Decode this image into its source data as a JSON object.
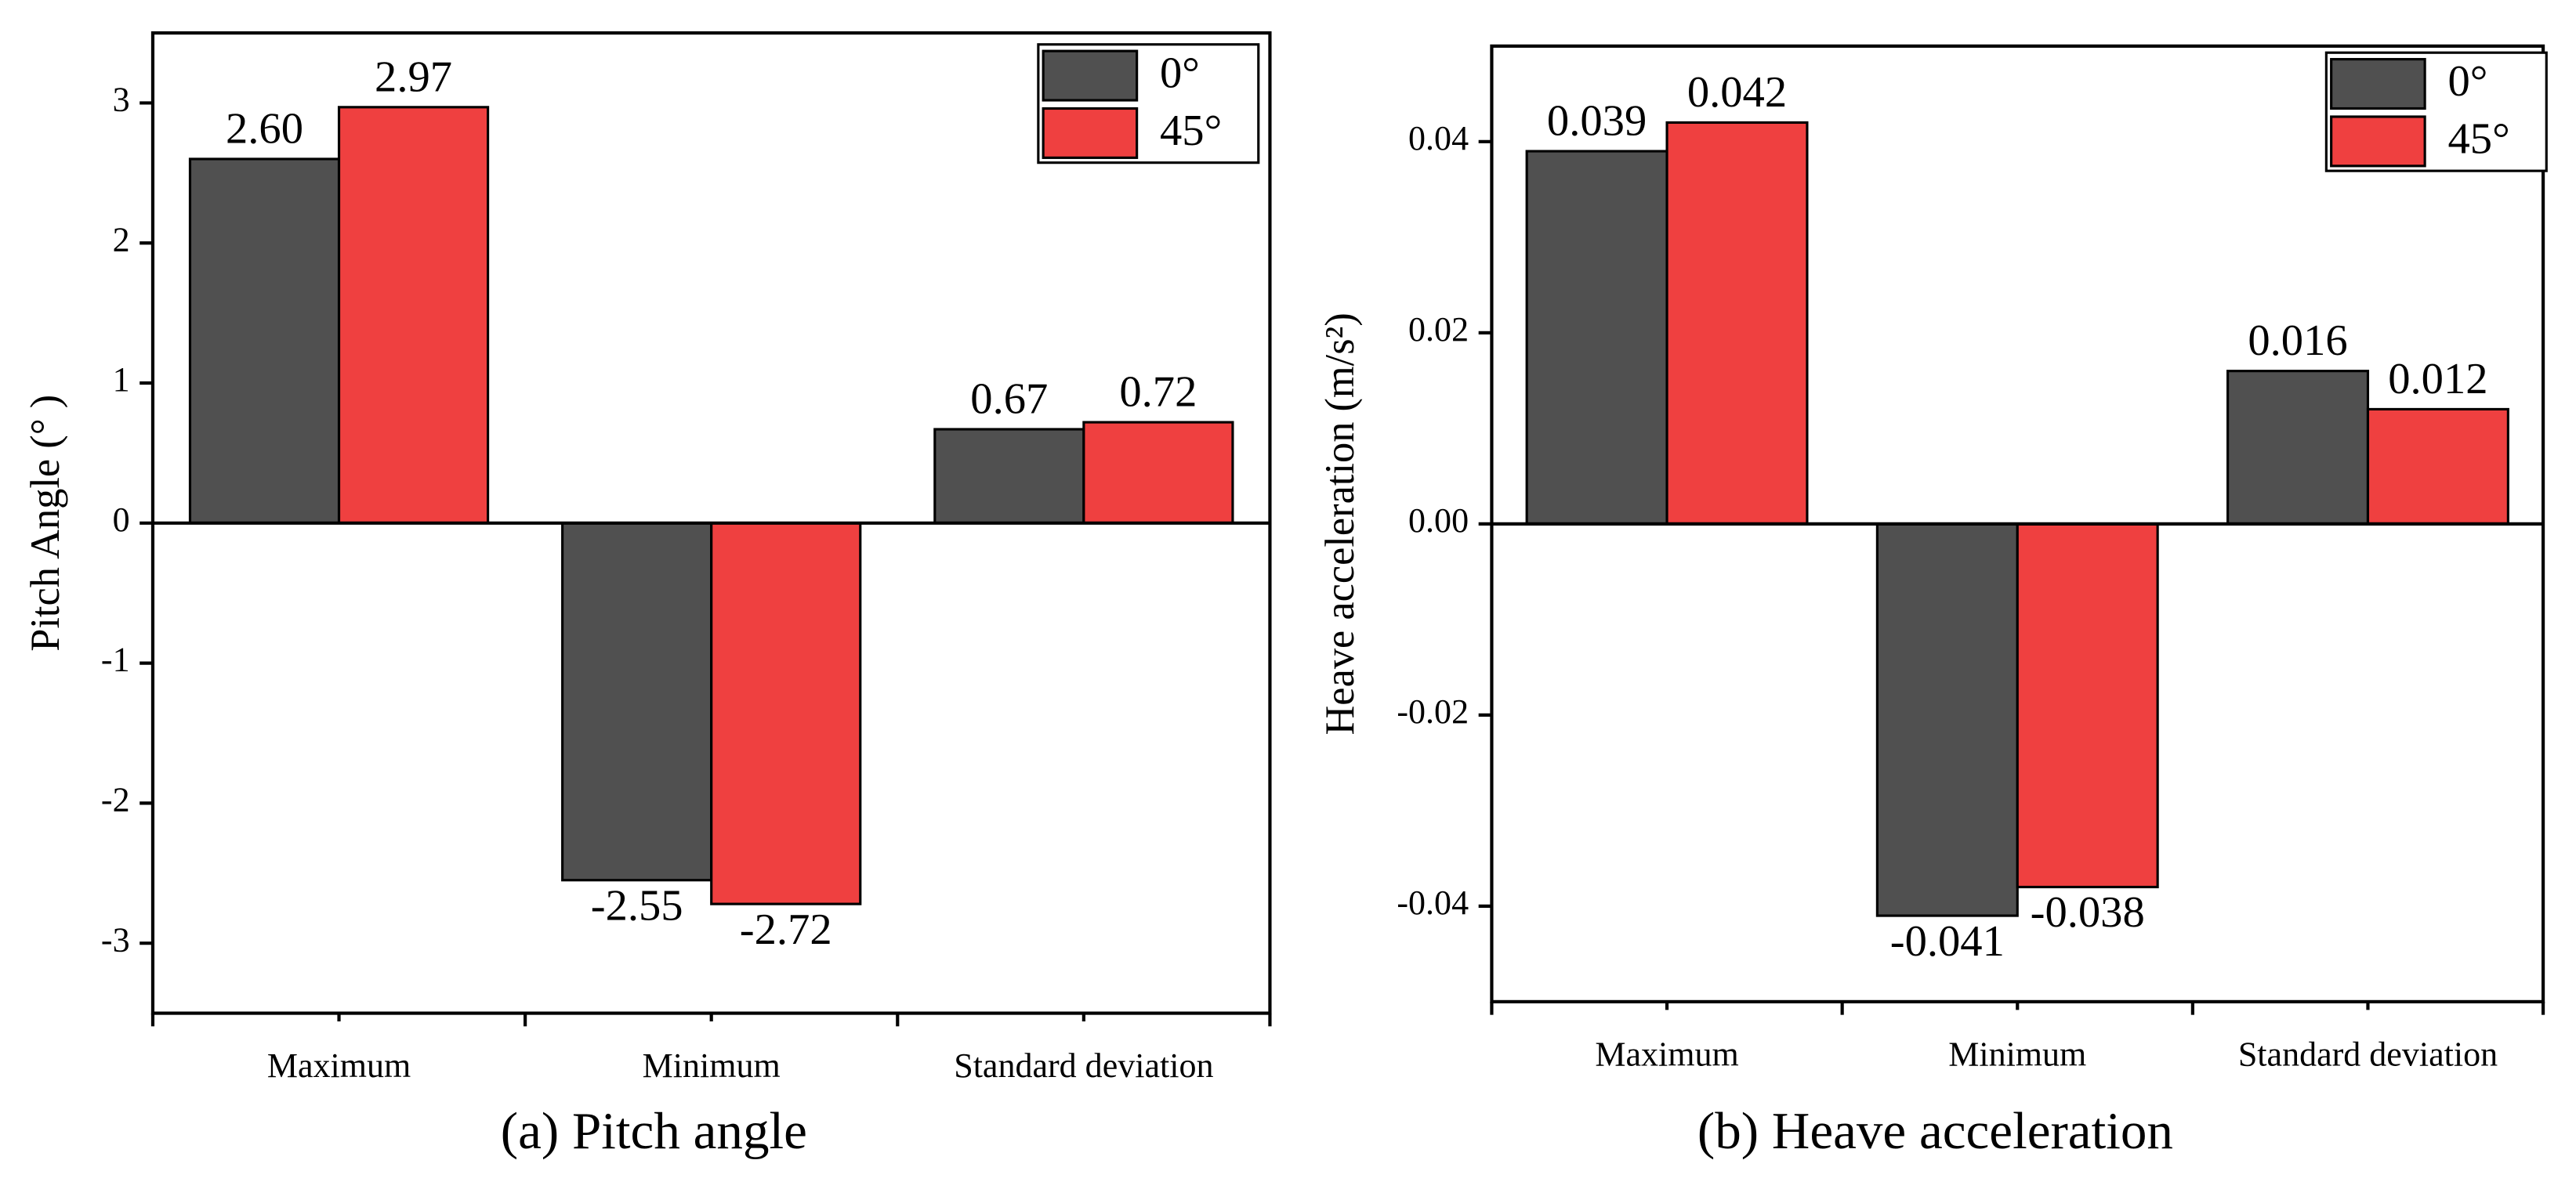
{
  "chart_data": [
    {
      "type": "bar",
      "caption": "(a) Pitch angle",
      "y_label": "Pitch Angle (° )",
      "categories": [
        "Maximum",
        "Minimum",
        "Standard deviation"
      ],
      "series": [
        {
          "name": "0°",
          "color": "#505050",
          "values": [
            2.6,
            -2.55,
            0.67
          ],
          "value_labels": [
            "2.60",
            "-2.55",
            "0.67"
          ]
        },
        {
          "name": "45°",
          "color": "#ef4040",
          "values": [
            2.97,
            -2.72,
            0.72
          ],
          "value_labels": [
            "2.97",
            "-2.72",
            "0.72"
          ]
        }
      ],
      "ylim": [
        -3.5,
        3.5
      ],
      "yticks": [
        -3,
        -2,
        -1,
        0,
        1,
        2,
        3
      ],
      "legend": "upper right"
    },
    {
      "type": "bar",
      "caption": "(b) Heave acceleration",
      "y_label": "Heave acceleration (m/s²)",
      "categories": [
        "Maximum",
        "Minimum",
        "Standard deviation"
      ],
      "series": [
        {
          "name": "0°",
          "color": "#505050",
          "values": [
            0.039,
            -0.041,
            0.016
          ],
          "value_labels": [
            "0.039",
            "-0.041",
            "0.016"
          ]
        },
        {
          "name": "45°",
          "color": "#ef4040",
          "values": [
            0.042,
            -0.038,
            0.012
          ],
          "value_labels": [
            "0.042",
            "-0.038",
            "0.012"
          ]
        }
      ],
      "ylim": [
        -0.05,
        0.05
      ],
      "yticks": [
        -0.04,
        -0.02,
        {
          "value": 0,
          "label": "0.00"
        },
        0.02,
        0.04
      ],
      "legend": "upper right"
    }
  ]
}
